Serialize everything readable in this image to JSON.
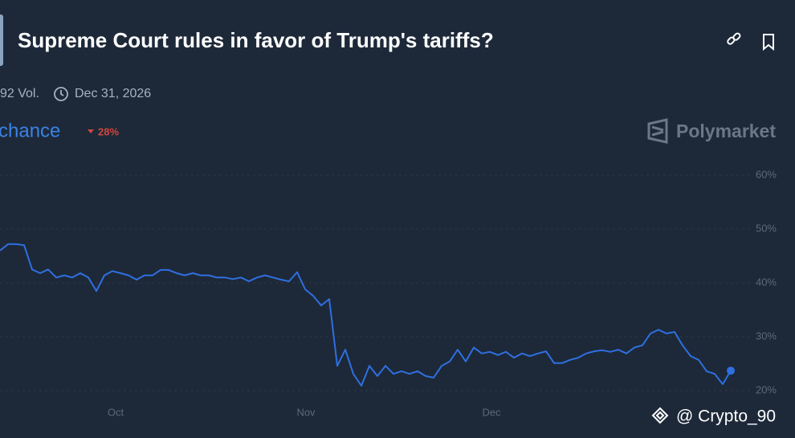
{
  "header": {
    "title": "Supreme Court rules in favor of Trump's tariffs?",
    "volume": "92 Vol.",
    "end_date": "Dec 31, 2026",
    "chance_label": "chance",
    "change": "28%",
    "brand": "Polymarket"
  },
  "watermark": "@ Crypto_90",
  "chart_data": {
    "type": "line",
    "x_labels": [
      "Oct",
      "Nov",
      "Dec"
    ],
    "ylim": [
      20,
      60
    ],
    "yticks": [
      {
        "value": 60,
        "label": "60%"
      },
      {
        "value": 50,
        "label": "50%"
      },
      {
        "value": 40,
        "label": "40%"
      },
      {
        "value": 30,
        "label": "30%"
      },
      {
        "value": 20,
        "label": "20%"
      }
    ],
    "grid": true,
    "series": [
      {
        "color": "#2f6fe0",
        "values": [
          46,
          47.2,
          47.2,
          47,
          42.5,
          41.8,
          42.5,
          41,
          41.4,
          41,
          41.8,
          41,
          38.5,
          41.4,
          42.2,
          41.8,
          41.4,
          40.6,
          41.4,
          41.4,
          42.4,
          42.4,
          41.8,
          41.4,
          41.8,
          41.4,
          41.4,
          41,
          41,
          40.7,
          41,
          40.3,
          41,
          41.4,
          41,
          40.6,
          40.3,
          42,
          38.8,
          37.6,
          35.8,
          37,
          24.6,
          27.6,
          23.1,
          20.9,
          24.6,
          22.7,
          24.6,
          23.1,
          23.6,
          23.1,
          23.6,
          22.7,
          22.4,
          24.6,
          25.4,
          27.6,
          25.4,
          28,
          26.9,
          27.2,
          26.6,
          27.2,
          26.1,
          26.9,
          26.4,
          26.9,
          27.3,
          25.1,
          25.1,
          25.7,
          26.1,
          26.9,
          27.3,
          27.5,
          27.2,
          27.6,
          26.9,
          28,
          28.4,
          30.6,
          31.3,
          30.6,
          30.9,
          28.4,
          26.4,
          25.7,
          23.6,
          23.1,
          21.2,
          23.7
        ]
      }
    ]
  }
}
